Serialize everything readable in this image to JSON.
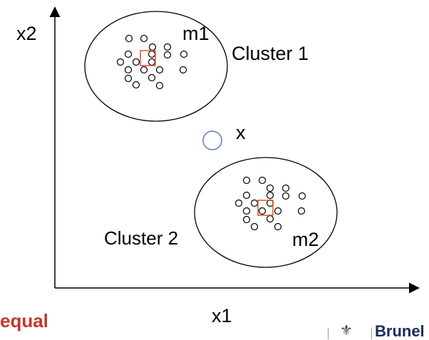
{
  "axes": {
    "x_label": "x1",
    "y_label": "x2"
  },
  "clusters": [
    {
      "label": "Cluster 1",
      "centroid_label": "m1"
    },
    {
      "label": "Cluster 2",
      "centroid_label": "m2"
    }
  ],
  "query_point_label": "x",
  "bottom_text": "equal",
  "logo": {
    "name": "Brunel"
  },
  "colors": {
    "centroid_marker": "#d9522b",
    "query_point": "#5b7fb8",
    "bottom_text": "#c0392b",
    "logo_text": "#1a2b5c"
  }
}
